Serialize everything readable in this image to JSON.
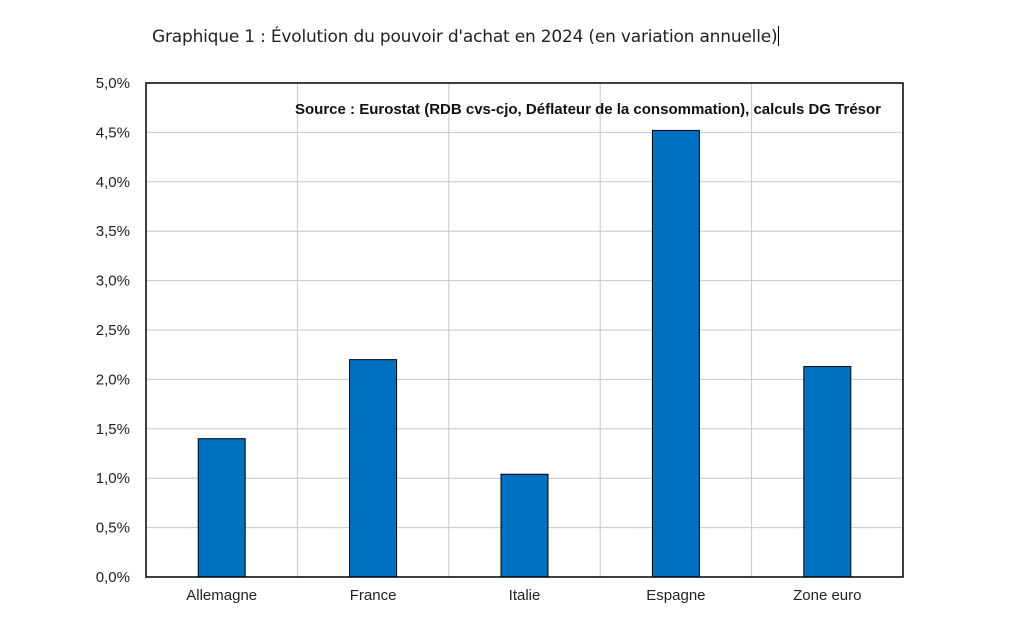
{
  "chart_data": {
    "type": "bar",
    "title": "Graphique 1 : Évolution du pouvoir d'achat en 2024 (en variation annuelle)",
    "annotation": "Source : Eurostat (RDB cvs-cjo, Déflateur de la consommation), calculs DG Trésor",
    "categories": [
      "Allemagne",
      "France",
      "Italie",
      "Espagne",
      "Zone euro"
    ],
    "values": [
      1.4,
      2.2,
      1.04,
      4.52,
      2.13
    ],
    "ylim": [
      0,
      5
    ],
    "yticks": [
      "0,0%",
      "0,5%",
      "1,0%",
      "1,5%",
      "2,0%",
      "2,5%",
      "3,0%",
      "3,5%",
      "4,0%",
      "4,5%",
      "5,0%"
    ],
    "xlabel": "",
    "ylabel": "",
    "grid": true,
    "bar_color": "#0070c0"
  }
}
